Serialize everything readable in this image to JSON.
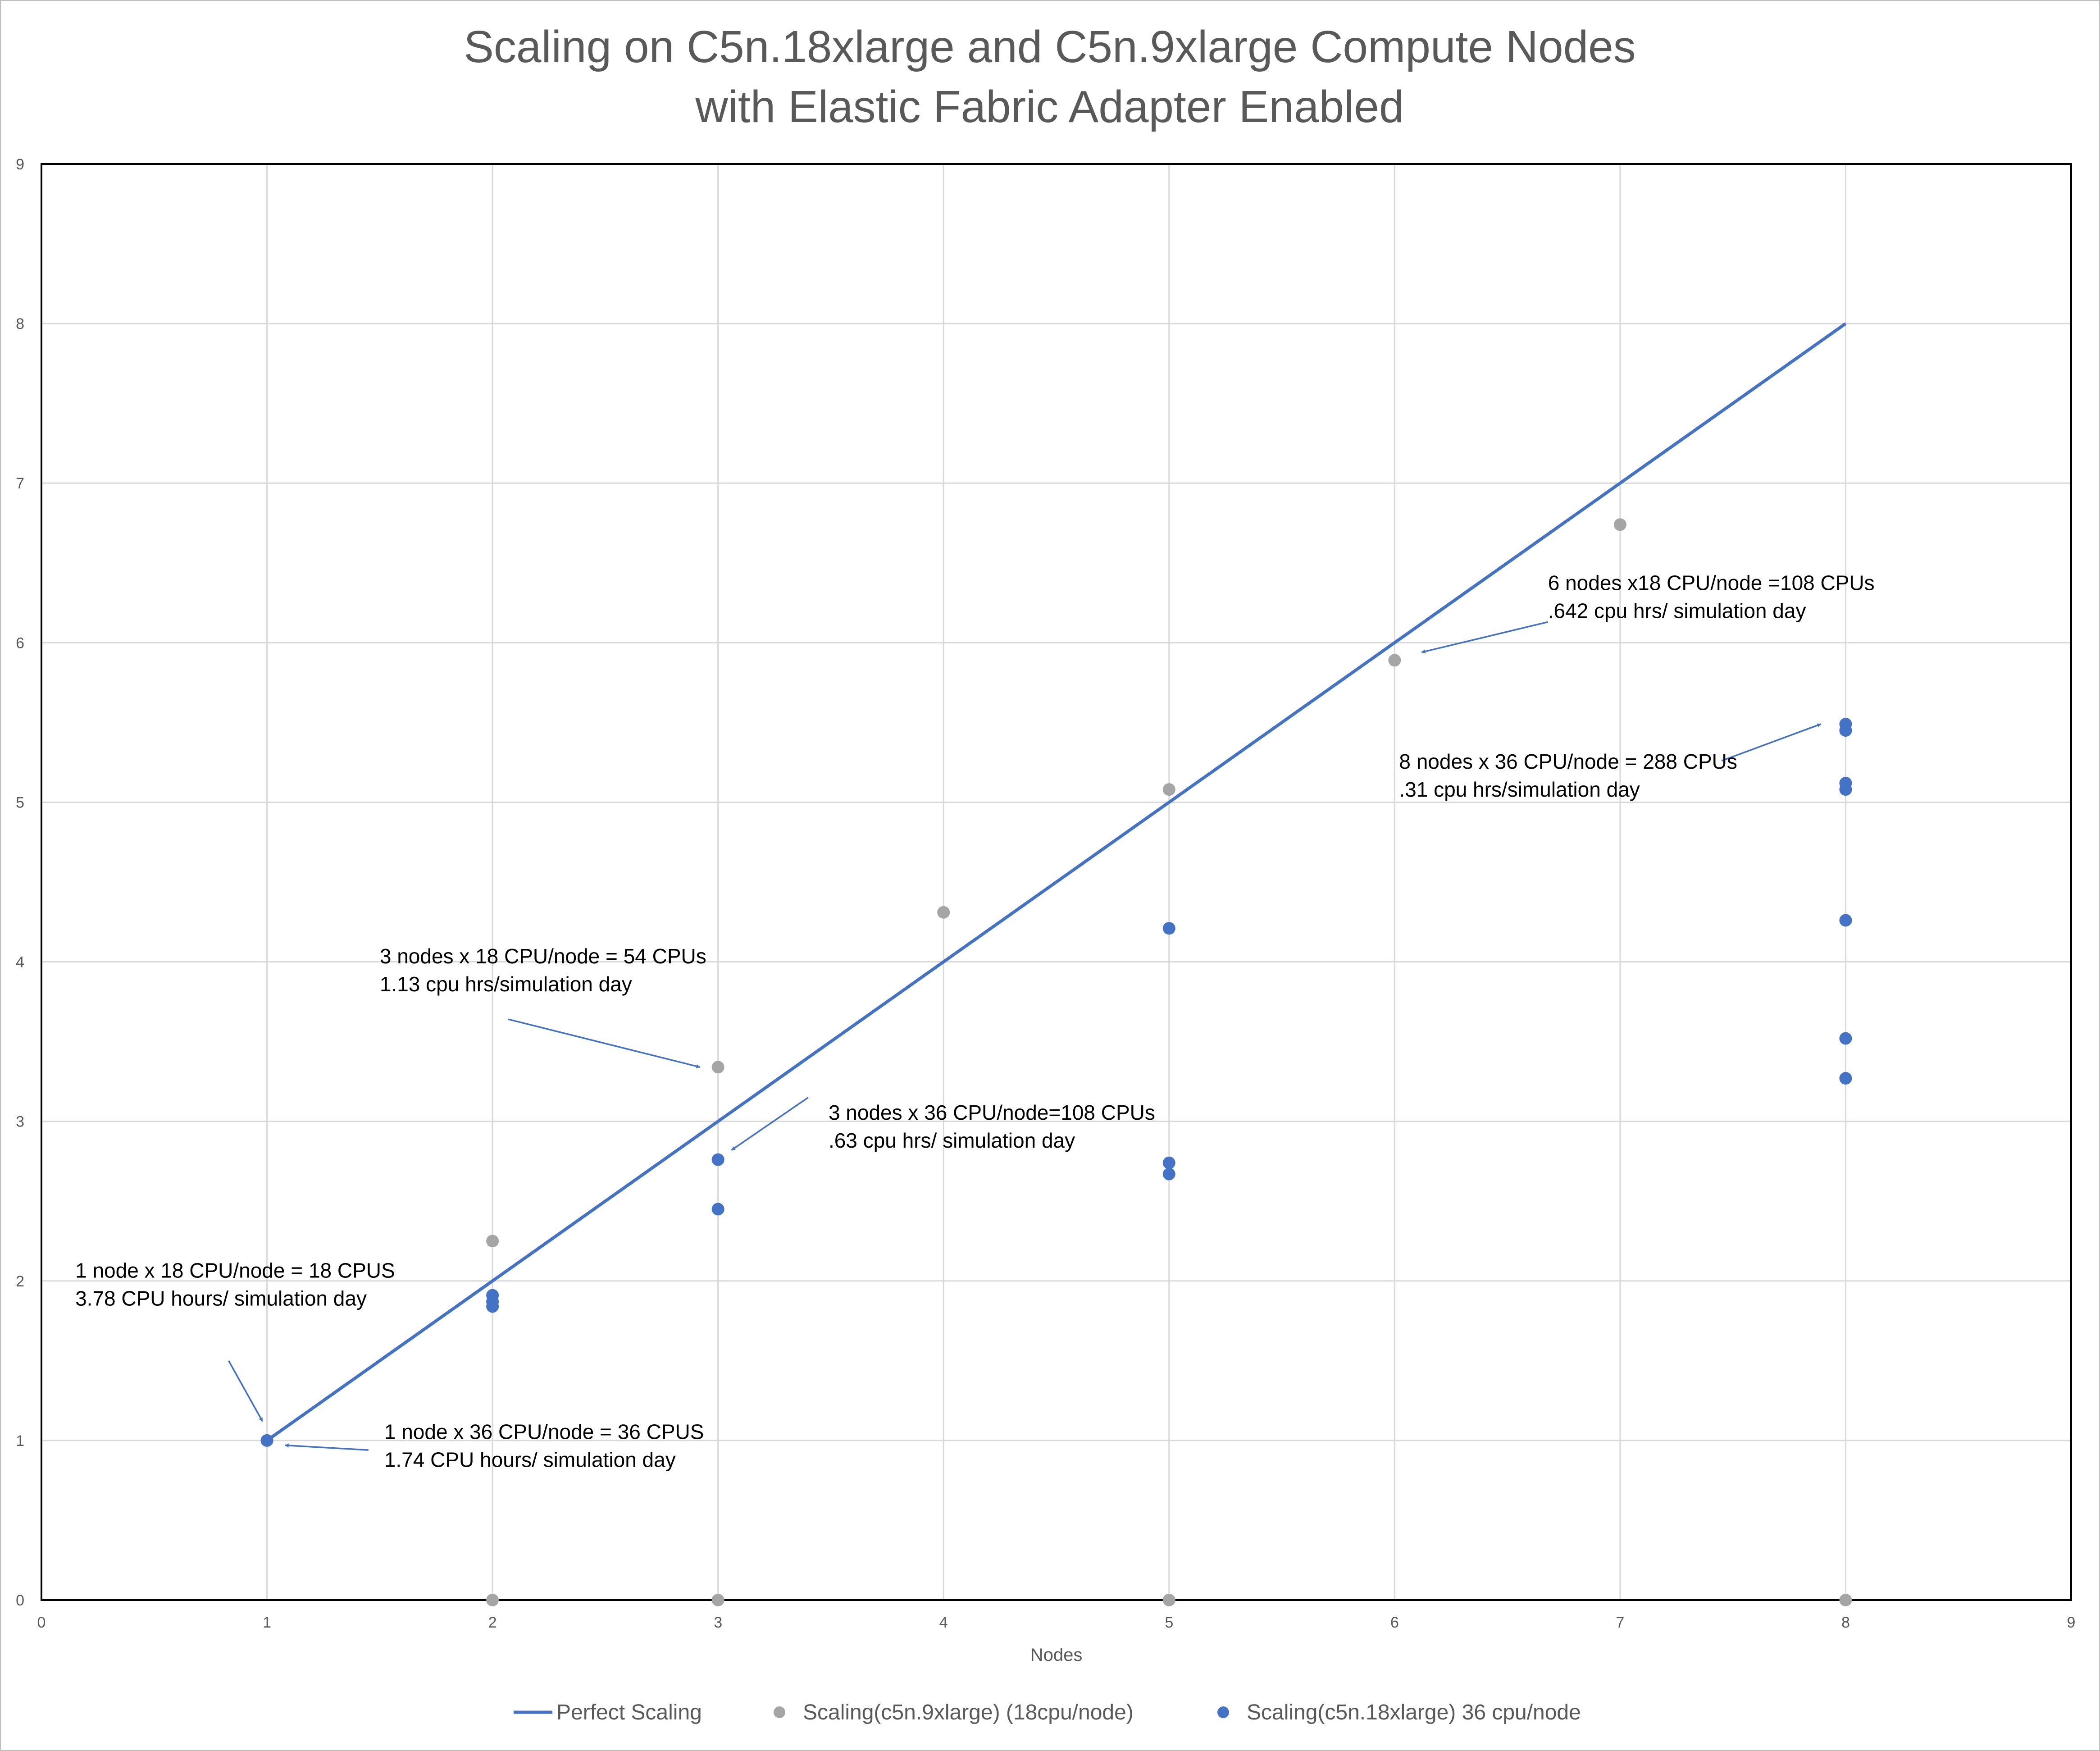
{
  "chart_data": {
    "type": "scatter",
    "title": [
      "Scaling on C5n.18xlarge and C5n.9xlarge Compute Nodes",
      "with Elastic Fabric Adapter Enabled"
    ],
    "xlabel": "Nodes",
    "ylabel": "",
    "xlim": [
      0,
      9
    ],
    "ylim": [
      0,
      9
    ],
    "x_ticks": [
      "0",
      "1",
      "2",
      "3",
      "4",
      "5",
      "6",
      "7",
      "8",
      "9"
    ],
    "y_ticks": [
      "0",
      "1",
      "2",
      "3",
      "4",
      "5",
      "6",
      "7",
      "8",
      "9"
    ],
    "grid": true,
    "legend_position": "bottom",
    "series": [
      {
        "name": "Perfect Scaling",
        "kind": "line",
        "color": "#4472C4",
        "points": [
          [
            1,
            1
          ],
          [
            8,
            8
          ]
        ]
      },
      {
        "name": "Scaling(c5n.9xlarge) (18cpu/node)",
        "kind": "scatter",
        "color": "#A5A5A5",
        "points": [
          [
            1,
            1
          ],
          [
            2,
            2.25
          ],
          [
            3,
            3.34
          ],
          [
            4,
            4.31
          ],
          [
            5,
            5.08
          ],
          [
            6,
            5.89
          ],
          [
            7,
            6.74
          ],
          [
            2,
            0
          ],
          [
            3,
            0
          ],
          [
            5,
            0
          ],
          [
            8,
            0
          ]
        ]
      },
      {
        "name": "Scaling(c5n.18xlarge) 36 cpu/node",
        "kind": "scatter",
        "color": "#4472C4",
        "points": [
          [
            1,
            1
          ],
          [
            2,
            1.91
          ],
          [
            2,
            1.87
          ],
          [
            2,
            1.84
          ],
          [
            3,
            2.76
          ],
          [
            3,
            2.45
          ],
          [
            5,
            4.21
          ],
          [
            5,
            2.74
          ],
          [
            5,
            2.67
          ],
          [
            8,
            5.49
          ],
          [
            8,
            5.45
          ],
          [
            8,
            5.12
          ],
          [
            8,
            5.08
          ],
          [
            8,
            4.26
          ],
          [
            8,
            3.52
          ],
          [
            8,
            3.27
          ]
        ]
      }
    ],
    "annotations": [
      {
        "lines": [
          "1 node x 18 CPU/node = 18 CPUS",
          "3.78 CPU hours/ simulation day"
        ],
        "text_pos": [
          0.15,
          2.02
        ],
        "arrow_from": [
          0.83,
          1.5
        ],
        "arrow_to": [
          0.98,
          1.12
        ]
      },
      {
        "lines": [
          "1 node x 36 CPU/node = 36 CPUS",
          "1.74 CPU hours/ simulation day"
        ],
        "text_pos": [
          1.52,
          1.01
        ],
        "arrow_from": [
          1.45,
          0.94
        ],
        "arrow_to": [
          1.08,
          0.97
        ]
      },
      {
        "lines": [
          "3 nodes x 18 CPU/node = 54 CPUs",
          "1.13 cpu hrs/simulation day"
        ],
        "text_pos": [
          1.5,
          3.99
        ],
        "arrow_from": [
          2.07,
          3.64
        ],
        "arrow_to": [
          2.92,
          3.34
        ]
      },
      {
        "lines": [
          "3 nodes x 36 CPU/node=108 CPUs",
          ".63 cpu hrs/ simulation day"
        ],
        "text_pos": [
          3.49,
          3.01
        ],
        "arrow_from": [
          3.4,
          3.15
        ],
        "arrow_to": [
          3.06,
          2.82
        ]
      },
      {
        "lines": [
          "6 nodes x18 CPU/node =108 CPUs",
          ".642 cpu hrs/ simulation day"
        ],
        "text_pos": [
          6.68,
          6.33
        ],
        "arrow_from": [
          6.68,
          6.13
        ],
        "arrow_to": [
          6.12,
          5.94
        ]
      },
      {
        "lines": [
          "8 nodes x 36 CPU/node = 288 CPUs",
          ".31 cpu hrs/simulation day"
        ],
        "text_pos": [
          6.02,
          5.21
        ],
        "arrow_from": [
          7.45,
          5.26
        ],
        "arrow_to": [
          7.89,
          5.49
        ]
      }
    ]
  }
}
